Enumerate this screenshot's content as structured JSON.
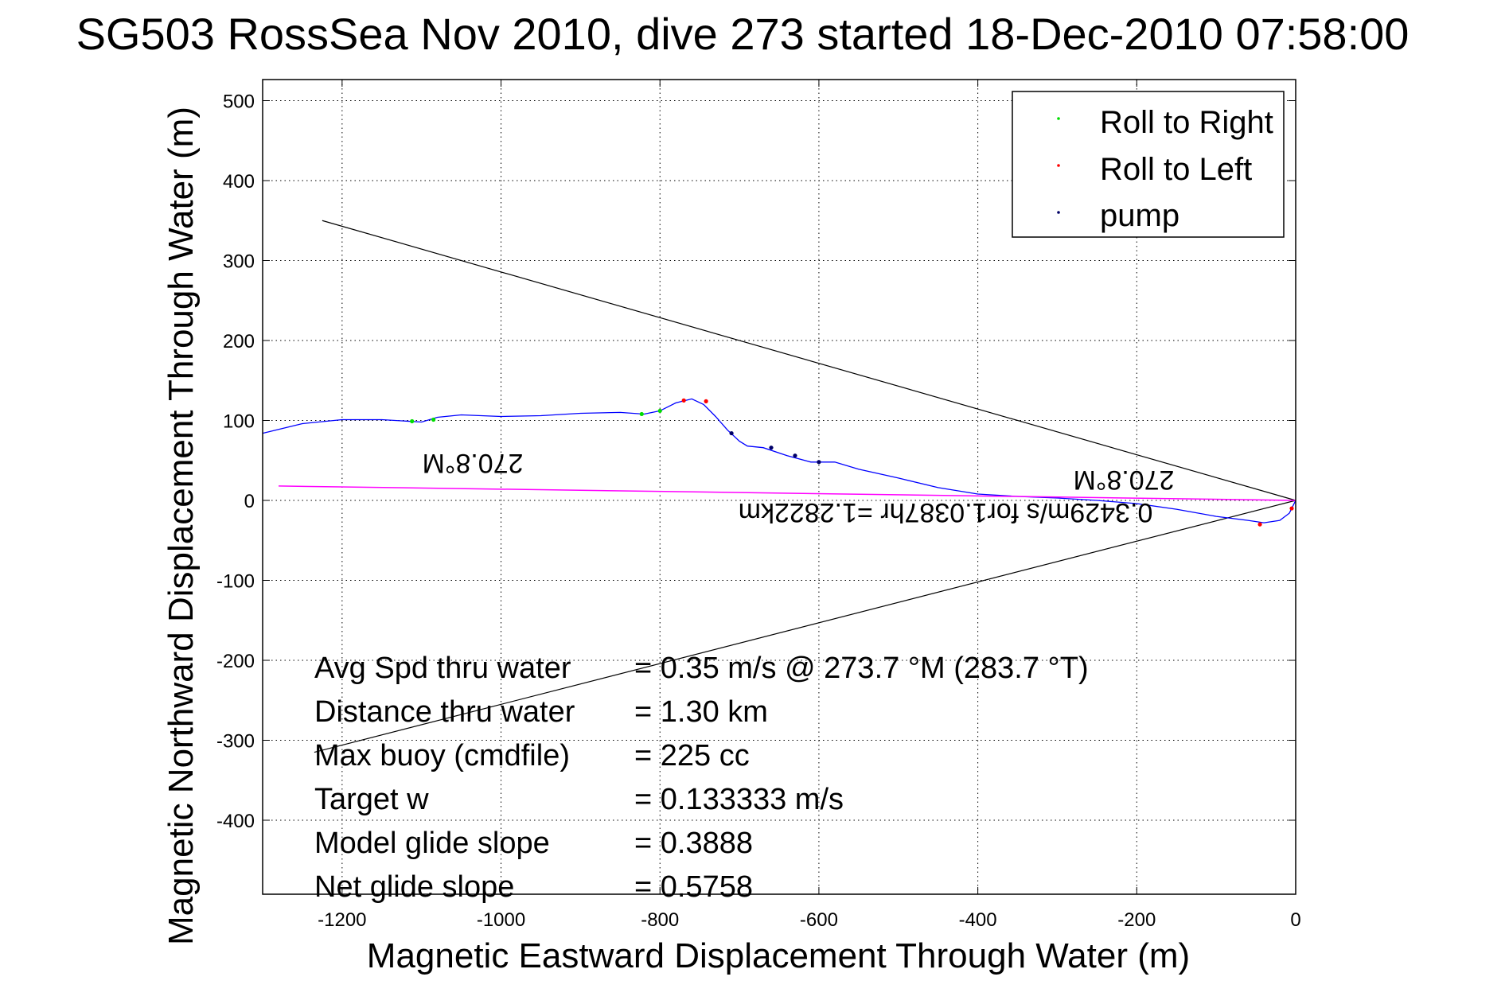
{
  "chart_data": {
    "type": "line",
    "title": "SG503 RossSea Nov 2010, dive 273 started 18-Dec-2010 07:58:00",
    "xlabel": "Magnetic Eastward Displacement Through Water (m)",
    "ylabel": "Magnetic Northward Displacement Through Water (m)",
    "xlim": [
      -1300,
      0
    ],
    "ylim": [
      -500,
      530
    ],
    "x_ticks": [
      -1200,
      -1000,
      -800,
      -600,
      -400,
      -200,
      0
    ],
    "x_tick_labels": [
      "-1200",
      "-1000",
      "-800",
      "-600",
      "-400",
      "-200",
      "0"
    ],
    "y_ticks": [
      500,
      400,
      300,
      200,
      100,
      0,
      -100,
      -200,
      -300,
      -400
    ],
    "y_tick_labels": [
      "500",
      "400",
      "300",
      "200",
      "100",
      "0",
      "-100",
      "-200",
      "-300",
      "-400"
    ],
    "grid": true,
    "legend_position": "top-right",
    "legend": [
      {
        "label": "Roll to Right",
        "color": "#00dd00"
      },
      {
        "label": "Roll to Left",
        "color": "#ff0000"
      },
      {
        "label": "pump",
        "color": "#000066"
      }
    ],
    "series": [
      {
        "name": "track",
        "color": "#0000ff",
        "x": [
          -1300,
          -1250,
          -1200,
          -1150,
          -1100,
          -1080,
          -1050,
          -1000,
          -950,
          -900,
          -850,
          -820,
          -800,
          -780,
          -760,
          -745,
          -730,
          -715,
          -700,
          -690,
          -670,
          -640,
          -610,
          -580,
          -550,
          -500,
          -450,
          -400,
          -350,
          -300,
          -250,
          -200,
          -150,
          -100,
          -60,
          -40,
          -20,
          -8,
          0
        ],
        "y": [
          84,
          96,
          101,
          101,
          98,
          104,
          107,
          105,
          106,
          109,
          110,
          108,
          112,
          122,
          127,
          120,
          105,
          88,
          74,
          68,
          66,
          56,
          48,
          48,
          39,
          28,
          16,
          8,
          5,
          3,
          0,
          -4,
          -11,
          -20,
          -25,
          -28,
          -25,
          -16,
          0
        ]
      },
      {
        "name": "heading",
        "color": "#ff00ff",
        "x": [
          -1280,
          0
        ],
        "y": [
          18,
          0
        ]
      }
    ],
    "roll_right": {
      "x": [
        -1112,
        -1085,
        -823,
        -800
      ],
      "y": [
        99,
        101,
        108,
        112
      ]
    },
    "roll_left": {
      "x": [
        -770,
        -742,
        -45,
        -5
      ],
      "y": [
        125,
        124,
        -30,
        -10
      ]
    },
    "pump": {
      "x": [
        -710,
        -660,
        -630,
        -600
      ],
      "y": [
        84,
        66,
        56,
        48
      ]
    },
    "annotations": {
      "heading_upper": "270.8°M",
      "heading_lower": "270.8°M",
      "speed_note": "0.3429m/s for1.0387hr =1.2822km"
    },
    "stats": [
      {
        "label": "Avg Spd thru water",
        "value": "=  0.35 m/s @ 273.7 °M (283.7 °T)"
      },
      {
        "label": "Distance thru water",
        "value": "=  1.30 km"
      },
      {
        "label": "Max buoy (cmdfile)",
        "value": "= 225 cc"
      },
      {
        "label": "Target w",
        "value": "= 0.133333 m/s"
      },
      {
        "label": "Model glide slope",
        "value": "= 0.3888"
      },
      {
        "label": "Net glide slope",
        "value": "= 0.5758"
      }
    ]
  }
}
